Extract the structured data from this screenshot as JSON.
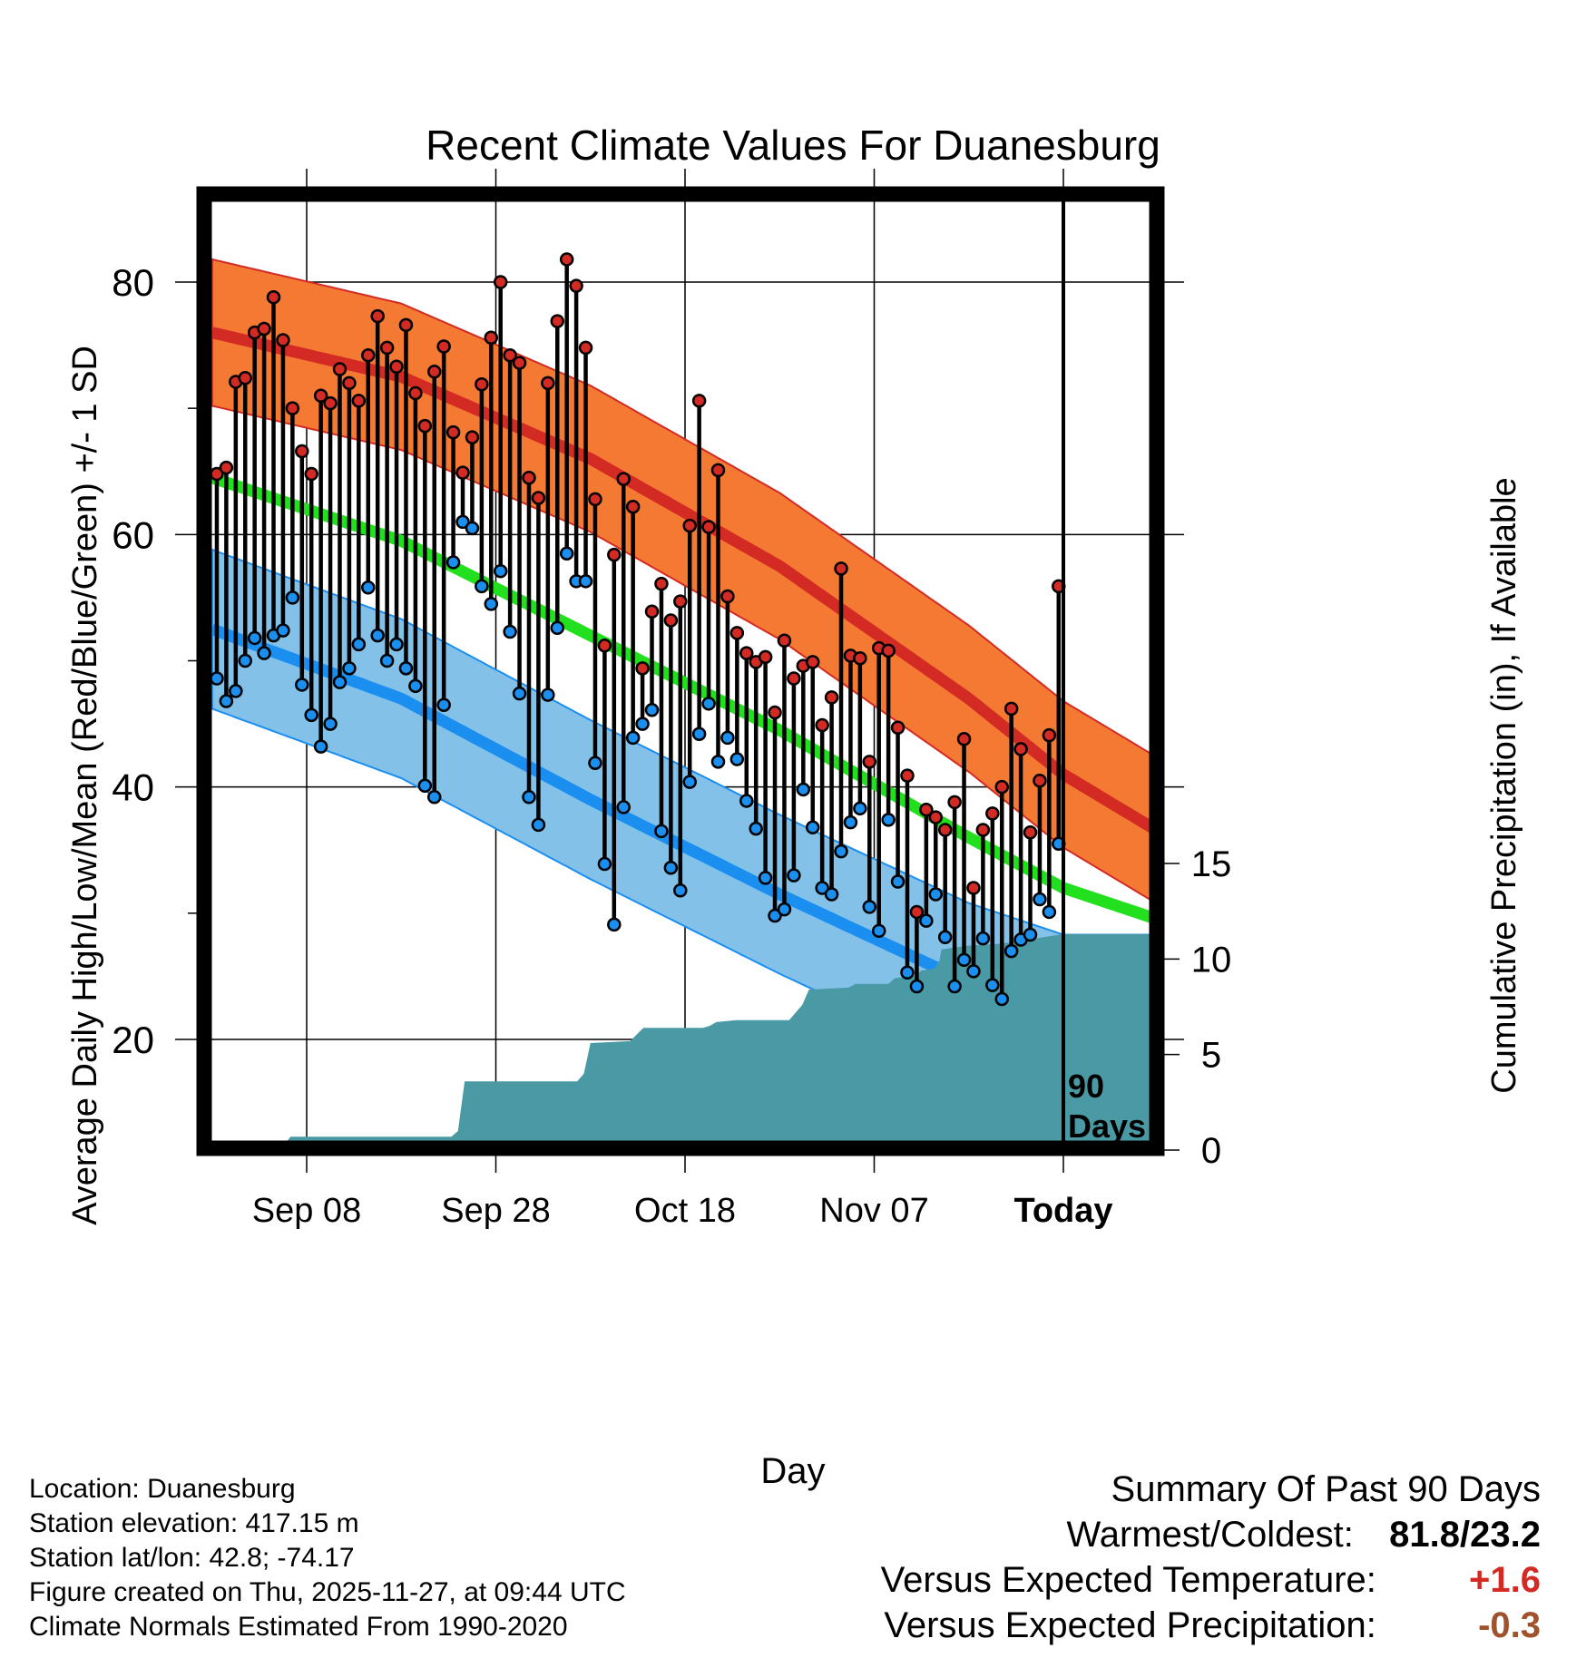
{
  "chart_data": {
    "type": "line",
    "title": "Recent Climate Values For Duanesburg",
    "xlabel": "Day",
    "ylabel_left": "Average Daily High/Low/Mean (Red/Blue/Green) +/- 1 SD",
    "ylabel_right": "Cumulative Precipitation (in), If Available",
    "x_range_days": [
      0,
      100
    ],
    "today_day": 90,
    "today_label": "90\nDays",
    "x_ticks": [
      {
        "day": 10,
        "label": "Sep 08"
      },
      {
        "day": 30,
        "label": "Sep 28"
      },
      {
        "day": 50,
        "label": "Oct 18"
      },
      {
        "day": 70,
        "label": "Nov 07"
      },
      {
        "day": 90,
        "label": "Today"
      }
    ],
    "ylim_left": [
      13,
      87
    ],
    "y_ticks_left": [
      20,
      40,
      60,
      80
    ],
    "ylim_right": [
      -0.1,
      15.4
    ],
    "y_ticks_right": [
      0,
      5,
      10,
      15
    ],
    "normal_high": [
      [
        0,
        76
      ],
      [
        20,
        72.5
      ],
      [
        40,
        66
      ],
      [
        60,
        57.5
      ],
      [
        80,
        47
      ],
      [
        90,
        41
      ],
      [
        100,
        36.5
      ]
    ],
    "normal_high_sd": 5.8,
    "normal_mean": [
      [
        0,
        64.5
      ],
      [
        20,
        59.5
      ],
      [
        40,
        52
      ],
      [
        60,
        44.5
      ],
      [
        80,
        36
      ],
      [
        90,
        32
      ],
      [
        100,
        29.5
      ]
    ],
    "normal_low": [
      [
        0,
        52.5
      ],
      [
        20,
        47
      ],
      [
        40,
        39
      ],
      [
        60,
        31.5
      ],
      [
        80,
        24.5
      ],
      [
        90,
        22
      ],
      [
        100,
        22
      ]
    ],
    "normal_low_sd": 6.3,
    "highs": [
      64.8,
      65.3,
      72.1,
      72.4,
      76.0,
      76.3,
      78.8,
      75.4,
      70.0,
      66.6,
      64.8,
      71.0,
      70.4,
      73.1,
      72.0,
      70.6,
      74.2,
      77.3,
      74.8,
      73.3,
      76.6,
      71.2,
      68.6,
      72.9,
      74.9,
      68.1,
      64.9,
      67.7,
      71.9,
      75.6,
      80.0,
      74.2,
      73.6,
      64.5,
      62.9,
      72.0,
      76.9,
      81.8,
      79.7,
      74.8,
      62.8,
      51.2,
      58.4,
      64.4,
      62.2,
      49.4,
      53.9,
      56.1,
      53.2,
      54.7,
      60.7,
      70.6,
      60.6,
      65.1,
      55.1,
      52.2,
      50.6,
      49.9,
      50.3,
      45.9,
      51.6,
      48.6,
      49.6,
      49.9,
      44.9,
      47.1,
      57.3,
      50.4,
      50.2,
      42.0,
      51.0,
      50.8,
      44.7,
      40.9,
      30.1,
      38.2,
      37.6,
      36.6,
      38.8,
      43.8,
      32.0,
      36.6,
      37.9,
      40.0,
      46.2,
      43.0,
      36.4,
      40.5,
      44.1,
      55.9
    ],
    "lows": [
      48.6,
      46.8,
      47.6,
      50.0,
      51.8,
      50.6,
      52.0,
      52.4,
      55.0,
      48.1,
      45.7,
      43.2,
      45.0,
      48.3,
      49.4,
      51.3,
      55.8,
      52.0,
      50.0,
      51.3,
      49.4,
      48.0,
      40.1,
      39.2,
      46.5,
      57.8,
      61.0,
      60.5,
      55.9,
      54.5,
      57.1,
      52.3,
      47.4,
      39.2,
      37.0,
      47.3,
      52.6,
      58.5,
      56.3,
      56.3,
      41.9,
      33.9,
      29.1,
      38.4,
      43.9,
      45.0,
      46.1,
      36.5,
      33.6,
      31.8,
      40.4,
      44.2,
      46.6,
      42.0,
      43.9,
      42.2,
      38.9,
      36.7,
      32.8,
      29.8,
      30.3,
      33.0,
      39.8,
      36.8,
      32.0,
      31.5,
      34.9,
      37.2,
      38.3,
      30.5,
      28.6,
      37.4,
      32.5,
      25.3,
      24.2,
      29.4,
      31.5,
      28.1,
      24.2,
      26.3,
      25.4,
      28.0,
      24.3,
      23.2,
      27.0,
      27.9,
      28.3,
      31.1,
      30.1,
      35.5
    ],
    "precip_cumulative": [
      [
        0,
        0
      ],
      [
        5,
        0
      ],
      [
        5.6,
        0.3
      ],
      [
        7.8,
        0.4
      ],
      [
        8.3,
        0.7
      ],
      [
        25.3,
        0.7
      ],
      [
        26,
        1.0
      ],
      [
        26.7,
        3.6
      ],
      [
        38.6,
        3.6
      ],
      [
        39.3,
        4.0
      ],
      [
        40,
        5.6
      ],
      [
        44.2,
        5.7
      ],
      [
        45.6,
        6.4
      ],
      [
        51.9,
        6.4
      ],
      [
        52.6,
        6.5
      ],
      [
        53.3,
        6.7
      ],
      [
        55.4,
        6.8
      ],
      [
        61,
        6.8
      ],
      [
        62.4,
        7.6
      ],
      [
        63.1,
        8.4
      ],
      [
        67.3,
        8.5
      ],
      [
        68,
        8.7
      ],
      [
        71.5,
        8.7
      ],
      [
        72.2,
        9.0
      ],
      [
        74.3,
        9.1
      ],
      [
        75,
        9.4
      ],
      [
        76.4,
        9.5
      ],
      [
        76.9,
        9.9
      ],
      [
        77.1,
        10.5
      ],
      [
        79.9,
        10.7
      ],
      [
        83.4,
        10.8
      ],
      [
        90,
        11.3
      ],
      [
        100,
        11.3
      ]
    ],
    "series_colors": {
      "high_band": "#f47a33",
      "high_line": "#d42a24",
      "mean_line": "#22e01e",
      "low_band": "#83c1e9",
      "low_line": "#1b8ff0",
      "precip": "#4a9aa5",
      "high_dot": "#d42a24",
      "low_dot": "#1b8ff0"
    }
  },
  "info": {
    "location": "Location: Duanesburg",
    "elevation": "Station elevation: 417.15 m",
    "latlon": "Station lat/lon: 42.8; -74.17",
    "created": "Figure created on Thu, 2025-11-27, at 09:44 UTC",
    "normals": "Climate Normals Estimated From 1990-2020"
  },
  "summary": {
    "title": "Summary Of Past 90 Days",
    "warmest_label": "Warmest/Coldest:",
    "warmest_value": "81.8/23.2",
    "temp_label": "Versus Expected Temperature:",
    "temp_value": "+1.6",
    "temp_color": "#d42a24",
    "precip_label": "Versus Expected Precipitation:",
    "precip_value": "-0.3",
    "precip_color": "#a0522d"
  }
}
